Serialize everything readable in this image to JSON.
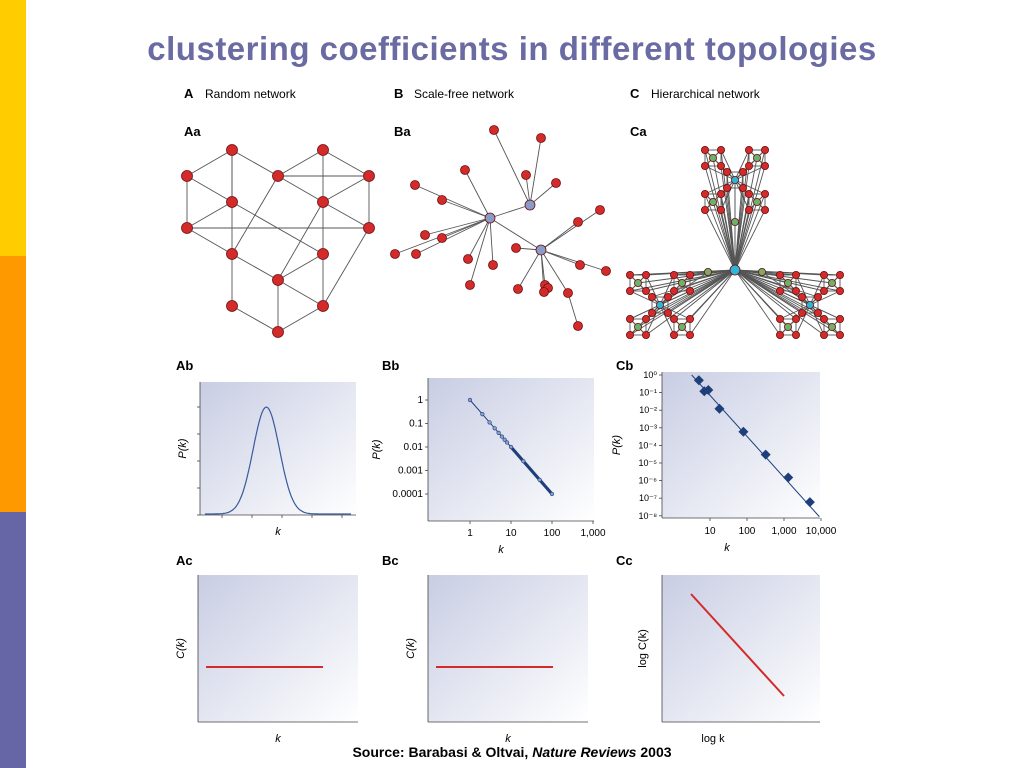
{
  "sidebar": {
    "colors": [
      "#ffcc00",
      "#ff9900",
      "#6666a6"
    ]
  },
  "slide": {
    "title": "clustering coefficients in different topologies",
    "source_prefix": "Source: Barabasi & Oltvai, ",
    "source_journal": "Nature Reviews",
    "source_year": " 2003"
  },
  "panels": {
    "A": {
      "letter": "A",
      "title": "Random network"
    },
    "B": {
      "letter": "B",
      "title": "Scale-free network"
    },
    "C": {
      "letter": "C",
      "title": "Hierarchical network"
    },
    "Aa": "Aa",
    "Ba": "Ba",
    "Ca": "Ca",
    "Ab": "Ab",
    "Bb": "Bb",
    "Cb": "Cb",
    "Ac": "Ac",
    "Bc": "Bc",
    "Cc": "Cc"
  },
  "colors": {
    "node_red": "#d42a2a",
    "node_blue": "#8b9bc8",
    "node_green": "#6fb06a",
    "node_cyan": "#2fb6d6",
    "curve_blue": "#3a5a9a",
    "line_red": "#d42a2a",
    "marker_blue": "#1e3f7a"
  },
  "chart_data": [
    {
      "id": "Ab",
      "type": "line",
      "xlabel": "k",
      "ylabel": "P(k)",
      "curve": "gaussian"
    },
    {
      "id": "Bb",
      "type": "line",
      "xscale": "log",
      "yscale": "log",
      "xlabel": "k",
      "ylabel": "P(k)",
      "xticks": [
        "1",
        "10",
        "100",
        "1,000"
      ],
      "yticks": [
        "1",
        "0.1",
        "0.01",
        "0.001",
        "0.0001"
      ],
      "x": [
        1,
        2,
        3,
        4,
        5,
        6,
        7,
        8,
        10,
        20,
        50,
        100
      ],
      "y": [
        1,
        0.25,
        0.111,
        0.0625,
        0.04,
        0.0278,
        0.0204,
        0.0156,
        0.01,
        0.0025,
        0.0004,
        0.0001
      ]
    },
    {
      "id": "Cb",
      "type": "scatter",
      "xscale": "log",
      "yscale": "log",
      "xlabel": "k",
      "ylabel": "P(k)",
      "xticks": [
        "10",
        "100",
        "1,000",
        "10,000"
      ],
      "yticks": [
        "10⁰",
        "10⁻¹",
        "10⁻²",
        "10⁻³",
        "10⁻⁴",
        "10⁻⁵",
        "10⁻⁶",
        "10⁻⁷",
        "10⁻⁸"
      ],
      "x": [
        5,
        7,
        9,
        18,
        80,
        320,
        1300,
        5000
      ],
      "y": [
        0.5,
        0.12,
        0.14,
        0.012,
        0.0006,
        3e-05,
        1.5e-06,
        6e-08
      ]
    },
    {
      "id": "Ac",
      "type": "line",
      "xlabel": "k",
      "ylabel": "C(k)",
      "curve": "constant"
    },
    {
      "id": "Bc",
      "type": "line",
      "xlabel": "k",
      "ylabel": "C(k)",
      "curve": "constant"
    },
    {
      "id": "Cc",
      "type": "line",
      "xlabel": "log k",
      "ylabel": "log C(k)",
      "curve": "decreasing-linear"
    }
  ]
}
